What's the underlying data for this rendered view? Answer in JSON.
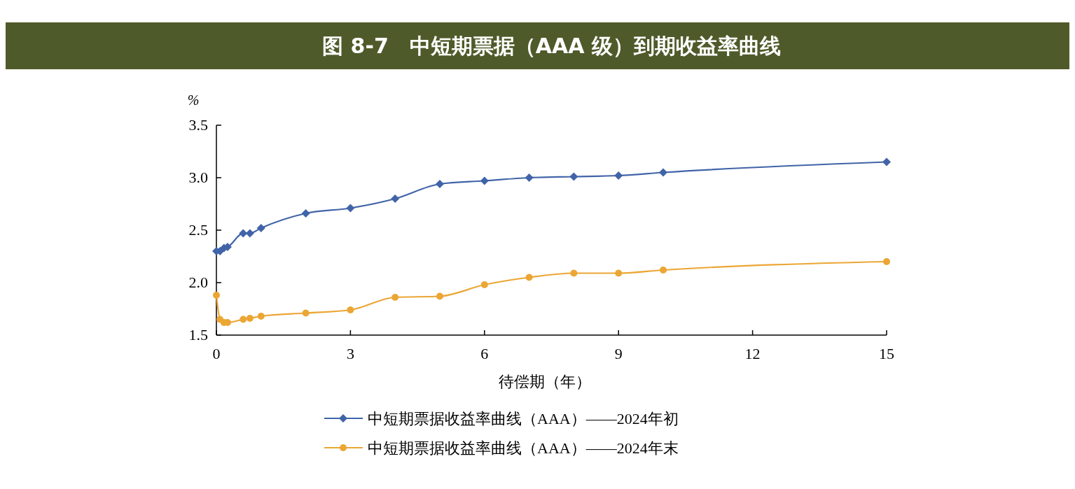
{
  "chart_data": {
    "type": "line",
    "title": "图 8-7　中短期票据（AAA 级）到期收益率曲线",
    "ylabel": "%",
    "xlabel": "待偿期（年）",
    "xlim": [
      0,
      15
    ],
    "xticks": [
      0,
      3,
      6,
      9,
      12,
      15
    ],
    "ylim": [
      1.5,
      3.5
    ],
    "yticks": [
      {
        "value": 1.5,
        "label": "1.5"
      },
      {
        "value": 2.0,
        "label": "2.0"
      },
      {
        "value": 2.5,
        "label": "2.5"
      },
      {
        "value": 3.0,
        "label": "3.0"
      },
      {
        "value": 3.5,
        "label": "3.5"
      }
    ],
    "grid": false,
    "legend": "bottom",
    "series": [
      {
        "name": "中短期票据收益率曲线（AAA）——2024年初",
        "color": "#4164a8",
        "marker": "diamond",
        "x": [
          0,
          0.08,
          0.17,
          0.25,
          0.6,
          0.75,
          1,
          2,
          3,
          4,
          5,
          6,
          7,
          8,
          9,
          10,
          15
        ],
        "values": [
          2.3,
          2.3,
          2.33,
          2.34,
          2.47,
          2.47,
          2.52,
          2.66,
          2.71,
          2.8,
          2.94,
          2.97,
          3.0,
          3.01,
          3.02,
          3.05,
          3.15
        ]
      },
      {
        "name": "中短期票据收益率曲线（AAA）——2024年末",
        "color": "#eba634",
        "marker": "circle",
        "x": [
          0,
          0.08,
          0.17,
          0.25,
          0.6,
          0.75,
          1,
          2,
          3,
          4,
          5,
          6,
          7,
          8,
          9,
          10,
          15
        ],
        "values": [
          1.88,
          1.65,
          1.62,
          1.62,
          1.65,
          1.66,
          1.68,
          1.71,
          1.74,
          1.86,
          1.87,
          1.98,
          2.05,
          2.09,
          2.09,
          2.12,
          2.2
        ]
      }
    ]
  }
}
